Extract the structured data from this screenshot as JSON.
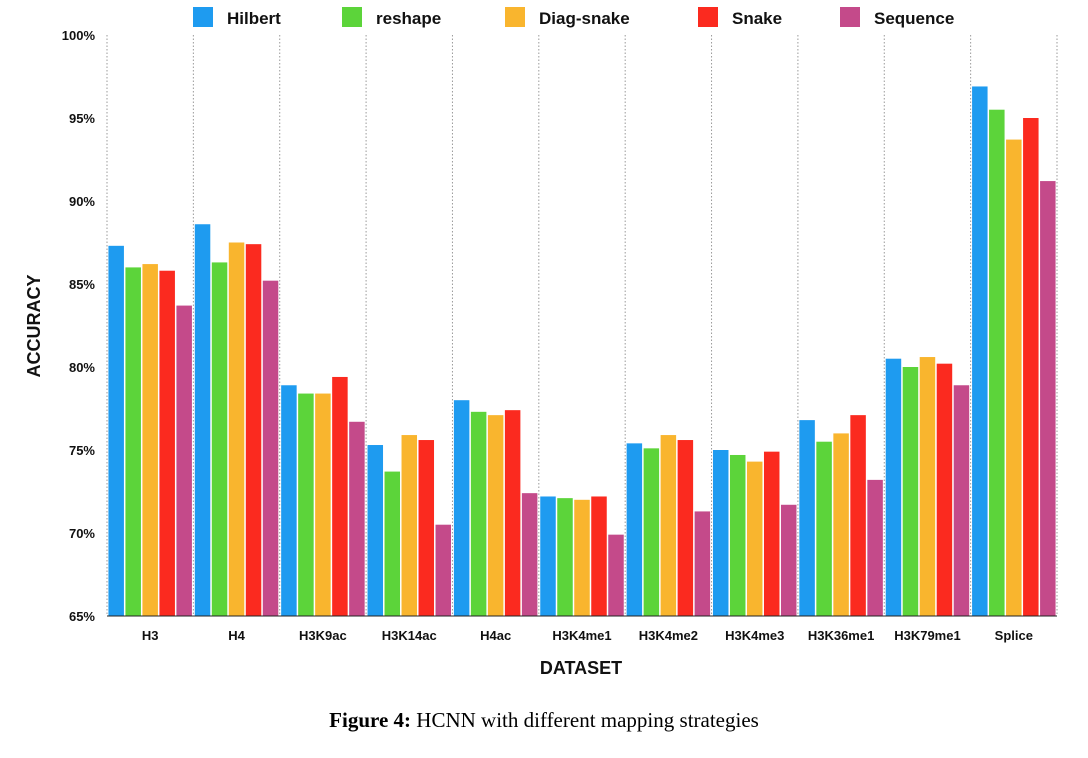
{
  "chart_data": {
    "type": "bar",
    "xlabel": "DATASET",
    "ylabel": "ACCURACY",
    "ylim": [
      65,
      100
    ],
    "yticks": [
      "65%",
      "70%",
      "75%",
      "80%",
      "85%",
      "90%",
      "95%",
      "100%"
    ],
    "ytick_values": [
      65,
      70,
      75,
      80,
      85,
      90,
      95,
      100
    ],
    "legend_position": "top",
    "grid": "dotted vertical separators",
    "categories": [
      "H3",
      "H4",
      "H3K9ac",
      "H3K14ac",
      "H4ac",
      "H3K4me1",
      "H3K4me2",
      "H3K4me3",
      "H3K36me1",
      "H3K79me1",
      "Splice"
    ],
    "series": [
      {
        "name": "Hilbert",
        "color": "#1E9BF0",
        "values": [
          87.3,
          88.6,
          78.9,
          75.3,
          78.0,
          72.2,
          75.4,
          75.0,
          76.8,
          80.5,
          96.9
        ]
      },
      {
        "name": "reshape",
        "color": "#5CD43A",
        "values": [
          86.0,
          86.3,
          78.4,
          73.7,
          77.3,
          72.1,
          75.1,
          74.7,
          75.5,
          80.0,
          95.5
        ]
      },
      {
        "name": "Diag-snake",
        "color": "#F9B52E",
        "values": [
          86.2,
          87.5,
          78.4,
          75.9,
          77.1,
          72.0,
          75.9,
          74.3,
          76.0,
          80.6,
          93.7
        ]
      },
      {
        "name": "Snake",
        "color": "#FB2A1F",
        "values": [
          85.8,
          87.4,
          79.4,
          75.6,
          77.4,
          72.2,
          75.6,
          74.9,
          77.1,
          80.2,
          95.0
        ]
      },
      {
        "name": "Sequence",
        "color": "#C44A8A",
        "values": [
          83.7,
          85.2,
          76.7,
          70.5,
          72.4,
          69.9,
          71.3,
          71.7,
          73.2,
          78.9,
          91.2
        ]
      }
    ]
  },
  "caption": {
    "label": "Figure 4:",
    "text": "HCNN with different mapping strategies"
  }
}
